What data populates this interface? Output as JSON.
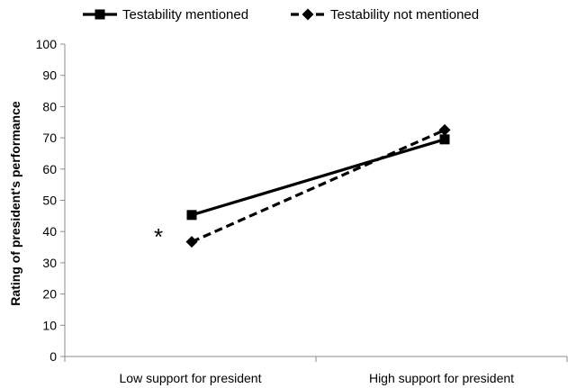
{
  "chart_data": {
    "type": "line",
    "categories": [
      "Low support for president",
      "High support for president"
    ],
    "series": [
      {
        "name": "Testability mentioned",
        "values": [
          45.3,
          69.5
        ],
        "style": "solid",
        "marker": "square",
        "color": "#000000"
      },
      {
        "name": "Testability not mentioned",
        "values": [
          36.7,
          72.5
        ],
        "style": "dashed",
        "marker": "diamond",
        "color": "#000000"
      }
    ],
    "ylabel": "Rating of president's performance",
    "xlabel": "",
    "ylim": [
      0,
      100
    ],
    "yticks": [
      "0",
      "10",
      "20",
      "30",
      "40",
      "50",
      "60",
      "70",
      "80",
      "90",
      "100"
    ],
    "legend_position": "top",
    "grid": false,
    "annotation": {
      "text": "*",
      "category": "Low support for president",
      "y": 39.5
    }
  }
}
